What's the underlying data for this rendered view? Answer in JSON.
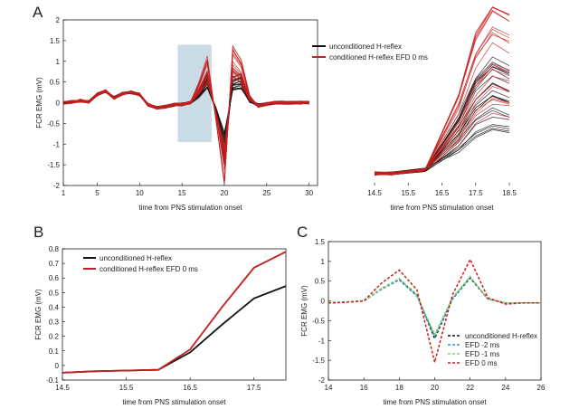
{
  "figure": {
    "panels": [
      "A",
      "B",
      "C"
    ]
  },
  "chart_data": [
    {
      "id": "A-main",
      "type": "line",
      "xlabel": "time from PNS stimulation onset",
      "ylabel": "FCR EMG (mV)",
      "xlim": [
        1,
        31
      ],
      "ylim": [
        -2,
        2
      ],
      "xticks": [
        1,
        5,
        10,
        15,
        20,
        25,
        30
      ],
      "yticks": [
        -2,
        -1.5,
        -1,
        -0.5,
        0,
        0.5,
        1,
        1.5,
        2
      ],
      "highlight": {
        "x": [
          14.5,
          18.5
        ],
        "color": "#c9dbe5"
      },
      "legend": [
        "unconditioned H-reflex",
        "conditioned H-reflex EFD 0 ms"
      ],
      "series": [
        {
          "name": "unconditioned H-reflex",
          "color": "#111111",
          "traces": 20,
          "x": [
            1,
            2,
            3,
            4,
            5,
            6,
            7,
            8,
            9,
            10,
            11,
            12,
            13,
            14,
            15,
            16,
            17,
            18,
            19,
            20,
            21,
            22,
            23,
            24,
            25,
            26,
            27,
            28,
            29,
            30
          ],
          "mean": [
            0,
            0.02,
            0.05,
            0.02,
            0.2,
            0.28,
            0.12,
            0.22,
            0.25,
            0.2,
            -0.05,
            -0.12,
            -0.1,
            -0.05,
            -0.04,
            0,
            0.2,
            0.52,
            -0.2,
            -1.05,
            0.45,
            0.5,
            0.05,
            -0.06,
            -0.03,
            0,
            0,
            0,
            0,
            0
          ]
        },
        {
          "name": "conditioned H-reflex EFD 0 ms",
          "color": "#c41e1e",
          "traces": 20,
          "x": [
            1,
            2,
            3,
            4,
            5,
            6,
            7,
            8,
            9,
            10,
            11,
            12,
            13,
            14,
            15,
            16,
            17,
            18,
            19,
            20,
            21,
            22,
            23,
            24,
            25,
            26,
            27,
            28,
            29,
            30
          ],
          "mean": [
            0,
            0.02,
            0.05,
            0.02,
            0.2,
            0.28,
            0.12,
            0.22,
            0.25,
            0.2,
            -0.05,
            -0.12,
            -0.1,
            -0.05,
            -0.04,
            0,
            0.35,
            0.8,
            -0.3,
            -1.6,
            1.0,
            0.75,
            0.1,
            -0.08,
            -0.03,
            0,
            0,
            0,
            0,
            0
          ]
        }
      ]
    },
    {
      "id": "A-zoom",
      "type": "line",
      "xlabel": "time from PNS stimulation onset",
      "xlim": [
        14.5,
        18.5
      ],
      "xticks": [
        14.5,
        15.5,
        16.5,
        17.5,
        18.5
      ],
      "series": [
        {
          "name": "unconditioned H-reflex",
          "color": "#111111",
          "x": [
            14.5,
            15,
            16,
            17,
            17.5,
            18,
            18.5
          ],
          "mean": [
            -0.05,
            -0.05,
            -0.02,
            0.25,
            0.45,
            0.55,
            0.5
          ]
        },
        {
          "name": "conditioned H-reflex EFD 0 ms",
          "color": "#c41e1e",
          "x": [
            14.5,
            15,
            16,
            17,
            17.5,
            18,
            18.5
          ],
          "mean": [
            -0.05,
            -0.05,
            -0.02,
            0.35,
            0.65,
            0.8,
            0.75
          ]
        }
      ]
    },
    {
      "id": "B",
      "type": "line",
      "xlabel": "time from PNS stimulation onset",
      "ylabel": "FCR EMG (mV)",
      "xlim": [
        14.5,
        18
      ],
      "ylim": [
        -0.1,
        0.8
      ],
      "xticks": [
        14.5,
        15.5,
        16.5,
        17.5
      ],
      "yticks": [
        -0.1,
        0,
        0.1,
        0.2,
        0.3,
        0.4,
        0.5,
        0.6,
        0.7,
        0.8
      ],
      "series": [
        {
          "name": "unconditioned H-reflex",
          "color": "#111111",
          "x": [
            14.5,
            15,
            15.5,
            16,
            16.5,
            17,
            17.5,
            18
          ],
          "values": [
            -0.05,
            -0.04,
            -0.035,
            -0.03,
            0.09,
            0.28,
            0.46,
            0.545
          ]
        },
        {
          "name": "conditioned H-reflex EFD 0 ms",
          "color": "#c41e1e",
          "x": [
            14.5,
            15,
            15.5,
            16,
            16.5,
            17,
            17.5,
            18
          ],
          "values": [
            -0.05,
            -0.04,
            -0.035,
            -0.03,
            0.11,
            0.4,
            0.67,
            0.78
          ]
        }
      ]
    },
    {
      "id": "C",
      "type": "line",
      "xlabel": "time from PNS stimulation onset",
      "ylabel": "FCR EMG (mV)",
      "xlim": [
        14,
        26
      ],
      "ylim": [
        -2,
        1.5
      ],
      "xticks": [
        14,
        16,
        18,
        20,
        22,
        24,
        26
      ],
      "yticks": [
        -2,
        -1.5,
        -1,
        -0.5,
        0,
        0.5,
        1,
        1.5
      ],
      "series": [
        {
          "name": "unconditioned H-reflex",
          "color": "#111111",
          "dash": "3,2",
          "x": [
            14,
            15,
            16,
            17,
            18,
            19,
            20,
            21,
            22,
            23,
            24,
            25,
            26
          ],
          "values": [
            -0.05,
            -0.03,
            0,
            0.3,
            0.55,
            0.15,
            -0.95,
            0.05,
            0.58,
            0.05,
            -0.05,
            -0.05,
            -0.05
          ]
        },
        {
          "name": "EFD -2 ms",
          "color": "#2f8fd8",
          "dash": "3,2",
          "x": [
            14,
            15,
            16,
            17,
            18,
            19,
            20,
            21,
            22,
            23,
            24,
            25,
            26
          ],
          "values": [
            -0.05,
            -0.03,
            0,
            0.3,
            0.53,
            0.12,
            -0.9,
            0.05,
            0.6,
            0.05,
            -0.05,
            -0.05,
            -0.05
          ]
        },
        {
          "name": "EFD -1 ms",
          "color": "#7ad85a",
          "dash": "3,2",
          "x": [
            14,
            15,
            16,
            17,
            18,
            19,
            20,
            21,
            22,
            23,
            24,
            25,
            26
          ],
          "values": [
            -0.05,
            -0.03,
            0,
            0.32,
            0.57,
            0.14,
            -0.85,
            0.08,
            0.62,
            0.05,
            -0.05,
            -0.05,
            -0.05
          ]
        },
        {
          "name": "EFD 0 ms",
          "color": "#c41e1e",
          "dash": "3,2",
          "x": [
            14,
            15,
            16,
            17,
            18,
            19,
            20,
            21,
            22,
            23,
            24,
            25,
            26
          ],
          "values": [
            -0.05,
            -0.03,
            0,
            0.45,
            0.78,
            0.28,
            -1.55,
            0.15,
            1.05,
            0.08,
            -0.08,
            -0.05,
            -0.05
          ]
        }
      ]
    }
  ]
}
